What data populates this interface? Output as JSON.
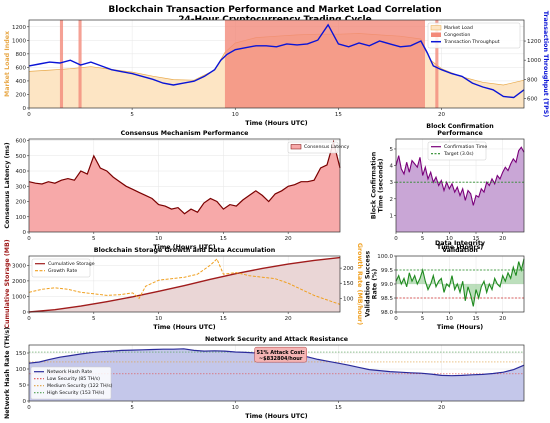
{
  "figure": {
    "title_line1": "Blockchain Transaction Performance and Market Load Correlation",
    "title_line2": "24-Hour Cryptocurrency Trading Cycle"
  },
  "colors": {
    "market_fill": "#fde5c4",
    "market_line": "#e8a94a",
    "congestion": "#f38a7a",
    "throughput": "#0a14d6",
    "latency_fill": "#f7a9a9",
    "latency_line": "#7a0000",
    "confirm_fill": "#c9a6d6",
    "confirm_line": "#7a007a",
    "target_line": "#2a8a2a",
    "storage_line": "#a01c1c",
    "storage_fill": "#ead6d6",
    "growth_line": "#f0a020",
    "validation_line": "#1f8a1f",
    "validation_fill": "#8fc98f",
    "hash_fill": "#c4c7ea",
    "hash_line": "#2a2a9a",
    "low_sec": "#e05050",
    "med_sec": "#e0a040",
    "high_sec": "#50a050",
    "annot_bg": "#f5b5b5"
  },
  "chart_data": [
    {
      "id": "top",
      "type": "line",
      "title": "",
      "xlabel": "Time (Hours UTC)",
      "ylabel": "Market Load Index",
      "y2label": "Transaction Throughput (TPS)",
      "xlim": [
        0,
        24
      ],
      "ylim": [
        0,
        1300
      ],
      "y2lim": [
        500,
        1420
      ],
      "xticks": [
        0,
        5,
        10,
        15,
        20
      ],
      "yticks": [
        0,
        200,
        400,
        600,
        800,
        1000,
        1200
      ],
      "y2ticks": [
        600,
        800,
        1000,
        1200
      ],
      "congestion_spans": [
        [
          1.5,
          1.65
        ],
        [
          2.4,
          2.55
        ],
        [
          9.5,
          19.2
        ],
        [
          19.7,
          19.85
        ]
      ],
      "market_load": {
        "name": "Market Load",
        "x": [
          0,
          1,
          2,
          3,
          4,
          5,
          6,
          7,
          8,
          9,
          9.5,
          10,
          11,
          12,
          13,
          14,
          15,
          16,
          17,
          18,
          19,
          19.5,
          20,
          21,
          22,
          23,
          24
        ],
        "values": [
          540,
          560,
          580,
          610,
          570,
          530,
          470,
          420,
          410,
          560,
          820,
          960,
          1040,
          1060,
          1080,
          1090,
          1090,
          1100,
          1080,
          1060,
          1020,
          700,
          580,
          460,
          380,
          340,
          410
        ]
      },
      "throughput": {
        "name": "Transaction Throughput",
        "x": [
          0,
          0.5,
          1,
          1.5,
          2,
          2.5,
          3,
          3.5,
          4,
          4.5,
          5,
          5.5,
          6,
          6.5,
          7,
          7.5,
          8,
          8.5,
          9,
          9.3,
          9.6,
          10,
          10.5,
          11,
          11.5,
          12,
          12.5,
          13,
          13.5,
          14,
          14.5,
          15,
          15.5,
          16,
          16.5,
          17,
          17.5,
          18,
          18.5,
          19,
          19.3,
          19.6,
          20,
          20.5,
          21,
          21.5,
          22,
          22.5,
          23,
          23.5,
          24
        ],
        "values": [
          940,
          960,
          980,
          970,
          1000,
          950,
          980,
          940,
          900,
          880,
          860,
          830,
          800,
          760,
          740,
          760,
          780,
          830,
          900,
          1000,
          1060,
          1110,
          1130,
          1150,
          1150,
          1140,
          1170,
          1160,
          1170,
          1210,
          1370,
          1170,
          1140,
          1180,
          1150,
          1200,
          1170,
          1140,
          1150,
          1200,
          1080,
          940,
          900,
          860,
          830,
          760,
          720,
          690,
          620,
          610,
          690
        ]
      }
    },
    {
      "id": "latency",
      "type": "area",
      "title": "Consensus Mechanism Performance",
      "xlabel": "Time (Hours UTC)",
      "ylabel": "Consensus Latency (ms)",
      "legend": "Consensus Latency",
      "xlim": [
        0,
        24
      ],
      "ylim": [
        0,
        610
      ],
      "xticks": [
        0,
        5,
        10,
        15,
        20
      ],
      "yticks": [
        0,
        100,
        200,
        300,
        400,
        500,
        600
      ],
      "x": [
        0,
        0.5,
        1,
        1.5,
        2,
        2.5,
        3,
        3.5,
        4,
        4.5,
        5,
        5.5,
        6,
        6.5,
        7,
        7.5,
        8,
        8.5,
        9,
        9.5,
        10,
        10.5,
        11,
        11.5,
        12,
        12.5,
        13,
        13.5,
        14,
        14.5,
        15,
        15.5,
        16,
        16.5,
        17,
        17.5,
        18,
        18.5,
        19,
        19.5,
        20,
        20.5,
        21,
        21.5,
        22,
        22.5,
        23,
        23.5,
        24
      ],
      "values": [
        330,
        320,
        315,
        330,
        320,
        340,
        350,
        340,
        400,
        380,
        500,
        420,
        400,
        360,
        330,
        300,
        280,
        260,
        240,
        220,
        180,
        170,
        150,
        160,
        120,
        150,
        130,
        190,
        220,
        200,
        150,
        180,
        170,
        210,
        240,
        270,
        240,
        200,
        250,
        270,
        300,
        310,
        330,
        330,
        340,
        420,
        440,
        590,
        420
      ]
    },
    {
      "id": "confirm",
      "type": "area",
      "title": "Block Confirmation Performance",
      "xlabel": "Time (Hours)",
      "ylabel": "Block Confirmation Time (seconds)",
      "legend": [
        "Confirmation Time",
        "Target (3.0s)"
      ],
      "target": 3.0,
      "xlim": [
        0,
        24
      ],
      "ylim": [
        0,
        5.6
      ],
      "xticks": [
        0,
        5,
        10,
        15,
        20
      ],
      "yticks": [
        1,
        2,
        3,
        4,
        5
      ],
      "x": [
        0,
        0.5,
        1,
        1.5,
        2,
        2.5,
        3,
        3.5,
        4,
        4.5,
        5,
        5.5,
        6,
        6.5,
        7,
        7.5,
        8,
        8.5,
        9,
        9.5,
        10,
        10.5,
        11,
        11.5,
        12,
        12.5,
        13,
        13.5,
        14,
        14.5,
        15,
        15.5,
        16,
        16.5,
        17,
        17.5,
        18,
        18.5,
        19,
        19.5,
        20,
        20.5,
        21,
        21.5,
        22,
        22.5,
        23,
        23.5,
        24
      ],
      "values": [
        4.0,
        4.6,
        3.8,
        3.5,
        4.2,
        3.6,
        4.3,
        4.1,
        3.9,
        4.5,
        3.4,
        3.9,
        3.2,
        3.6,
        3.0,
        3.3,
        2.8,
        3.1,
        2.5,
        3.0,
        2.6,
        2.9,
        2.4,
        2.7,
        2.2,
        2.6,
        1.9,
        2.5,
        2.3,
        1.6,
        2.2,
        2.1,
        2.6,
        2.4,
        3.0,
        2.8,
        3.2,
        2.9,
        3.4,
        3.2,
        3.6,
        3.9,
        3.7,
        4.1,
        4.4,
        4.2,
        4.9,
        5.1,
        4.8
      ]
    },
    {
      "id": "storage",
      "type": "area",
      "title": "Blockchain Storage Growth and Data Accumulation",
      "xlabel": "Time (Hours UTC)",
      "ylabel": "Cumulative Storage (MB)",
      "y2label": "Growth Rate (MB/hour)",
      "legend": [
        "Cumulative Storage",
        "Growth Rate"
      ],
      "xlim": [
        0,
        24
      ],
      "ylim": [
        0,
        3600
      ],
      "y2lim": [
        55,
        240
      ],
      "xticks": [
        0,
        5,
        10,
        15,
        20
      ],
      "yticks": [
        0,
        1000,
        2000,
        3000
      ],
      "y2ticks": [
        100,
        150,
        200
      ],
      "cumulative": {
        "x": [
          0,
          2,
          4,
          6,
          8,
          10,
          12,
          14,
          16,
          18,
          20,
          22,
          24
        ],
        "values": [
          0,
          150,
          380,
          660,
          980,
          1330,
          1700,
          2100,
          2470,
          2800,
          3080,
          3320,
          3500
        ]
      },
      "growth": {
        "x": [
          0,
          1,
          2,
          3,
          4,
          5,
          6,
          7,
          8,
          8.5,
          9,
          10,
          11,
          12,
          13,
          14,
          14.5,
          15,
          16,
          17,
          18,
          19,
          20,
          21,
          22,
          23,
          24
        ],
        "values": [
          120,
          130,
          135,
          130,
          120,
          115,
          110,
          112,
          118,
          100,
          140,
          160,
          165,
          170,
          180,
          210,
          230,
          180,
          185,
          175,
          170,
          165,
          150,
          130,
          110,
          95,
          80
        ]
      }
    },
    {
      "id": "validation",
      "type": "line",
      "title": "Data Integrity Validation",
      "xlabel": "Time (Hours)",
      "ylabel": "Validation Success Rate (%)",
      "xlim": [
        0,
        24
      ],
      "ylim": [
        98.0,
        100.0
      ],
      "xticks": [
        0,
        5,
        10,
        15,
        20
      ],
      "yticks": [
        98.0,
        98.5,
        99.0,
        99.5,
        100.0
      ],
      "ref_upper": 99.5,
      "ref_lower": 98.5,
      "x": [
        0,
        0.5,
        1,
        1.5,
        2,
        2.5,
        3,
        3.5,
        4,
        4.5,
        5,
        5.5,
        6,
        6.5,
        7,
        7.5,
        8,
        8.5,
        9,
        9.5,
        10,
        10.5,
        11,
        11.5,
        12,
        12.5,
        13,
        13.5,
        14,
        14.5,
        15,
        15.5,
        16,
        16.5,
        17,
        17.5,
        18,
        18.5,
        19,
        19.5,
        20,
        20.5,
        21,
        21.5,
        22,
        22.5,
        23,
        23.5,
        24
      ],
      "values": [
        99.1,
        99.3,
        99.0,
        99.2,
        98.9,
        99.4,
        99.1,
        99.3,
        99.0,
        99.2,
        99.5,
        99.1,
        98.8,
        99.0,
        99.3,
        98.9,
        99.1,
        99.2,
        98.7,
        99.0,
        98.9,
        99.3,
        98.8,
        99.0,
        98.7,
        99.1,
        98.4,
        98.9,
        98.6,
        98.2,
        98.8,
        98.5,
        98.9,
        99.1,
        98.7,
        99.0,
        98.8,
        99.2,
        99.0,
        98.9,
        99.3,
        99.1,
        99.4,
        99.2,
        99.6,
        99.3,
        99.8,
        99.5,
        99.9
      ]
    },
    {
      "id": "hash",
      "type": "area",
      "title": "Network Security and Attack Resistance",
      "xlabel": "Time (Hours UTC)",
      "ylabel": "Network Hash Rate (TH/s)",
      "legend": [
        "Network Hash Rate",
        "Low Security (85 TH/s)",
        "Medium Security (122 TH/s)",
        "High Security (153 TH/s)"
      ],
      "thresholds": [
        85,
        122,
        153
      ],
      "annotation": [
        "51% Attack Cost:",
        "~$832804/hour"
      ],
      "xlim": [
        0,
        24
      ],
      "ylim": [
        0,
        175
      ],
      "xticks": [
        0,
        5,
        10,
        15,
        20
      ],
      "yticks": [
        0,
        50,
        100,
        150
      ],
      "x": [
        0,
        0.5,
        1,
        1.5,
        2,
        2.5,
        3,
        3.5,
        4,
        4.5,
        5,
        5.5,
        6,
        6.5,
        7,
        7.5,
        8,
        8.5,
        9,
        9.5,
        10,
        10.5,
        11,
        11.5,
        12,
        12.5,
        13,
        13.5,
        14,
        14.5,
        15,
        15.5,
        16,
        16.5,
        17,
        17.5,
        18,
        18.5,
        19,
        19.5,
        20,
        20.5,
        21,
        21.5,
        22,
        22.5,
        23,
        23.5,
        24
      ],
      "values": [
        118,
        122,
        130,
        137,
        142,
        147,
        151,
        154,
        156,
        158,
        159,
        160,
        161,
        162,
        162,
        163,
        158,
        156,
        157,
        156,
        153,
        152,
        150,
        148,
        146,
        144,
        142,
        138,
        130,
        124,
        118,
        112,
        105,
        98,
        95,
        92,
        90,
        88,
        87,
        84,
        80,
        79,
        80,
        82,
        83,
        86,
        90,
        98,
        112
      ]
    }
  ]
}
